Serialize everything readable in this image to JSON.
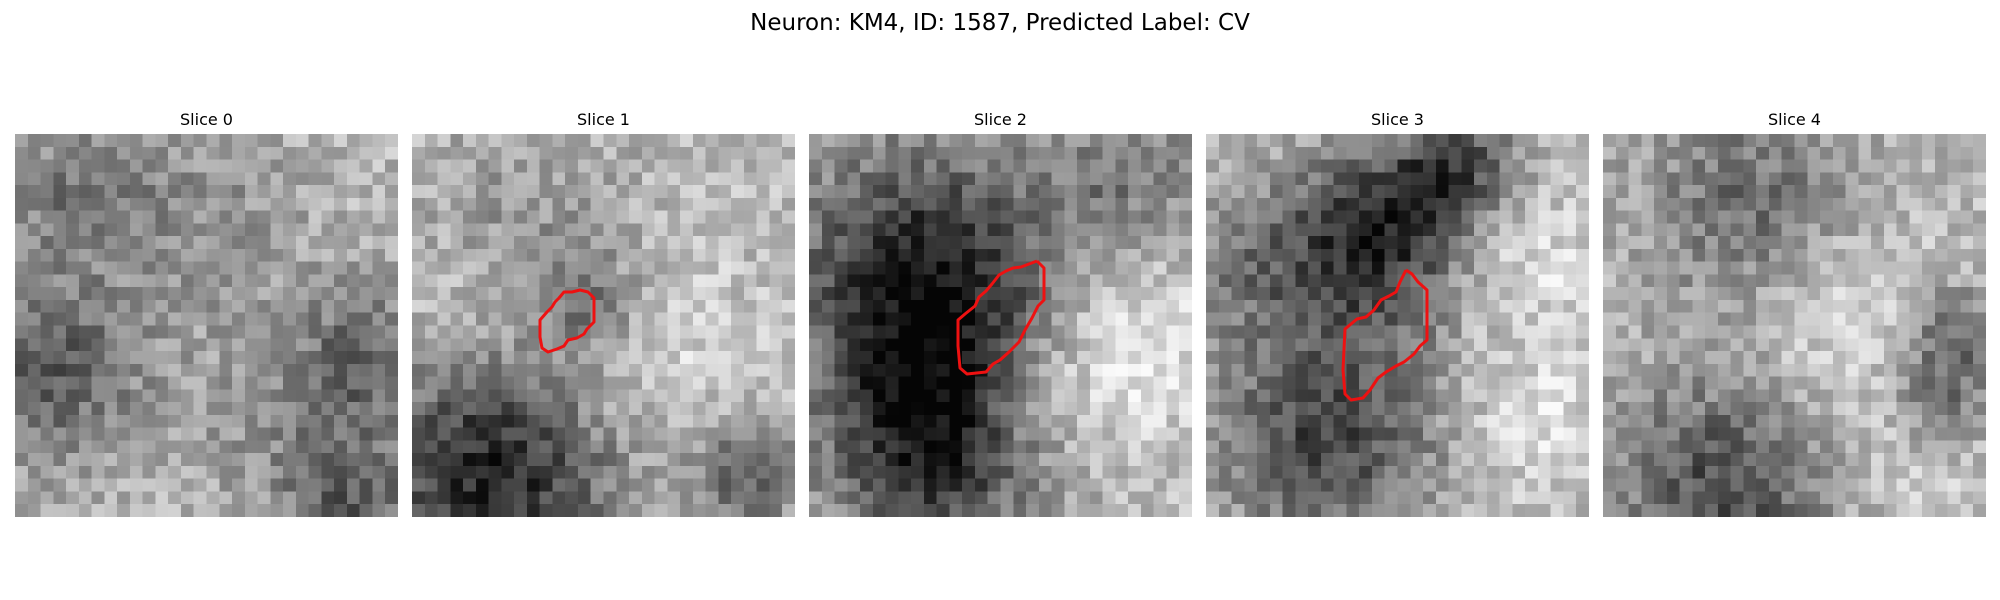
{
  "figure": {
    "title": "Neuron: KM4, ID: 1587, Predicted Label: CV",
    "outline_color": "#ee1111",
    "panels": [
      {
        "title": "Slice 0",
        "has_outline": false
      },
      {
        "title": "Slice 1",
        "has_outline": true
      },
      {
        "title": "Slice 2",
        "has_outline": true
      },
      {
        "title": "Slice 3",
        "has_outline": true
      },
      {
        "title": "Slice 4",
        "has_outline": false
      }
    ]
  }
}
